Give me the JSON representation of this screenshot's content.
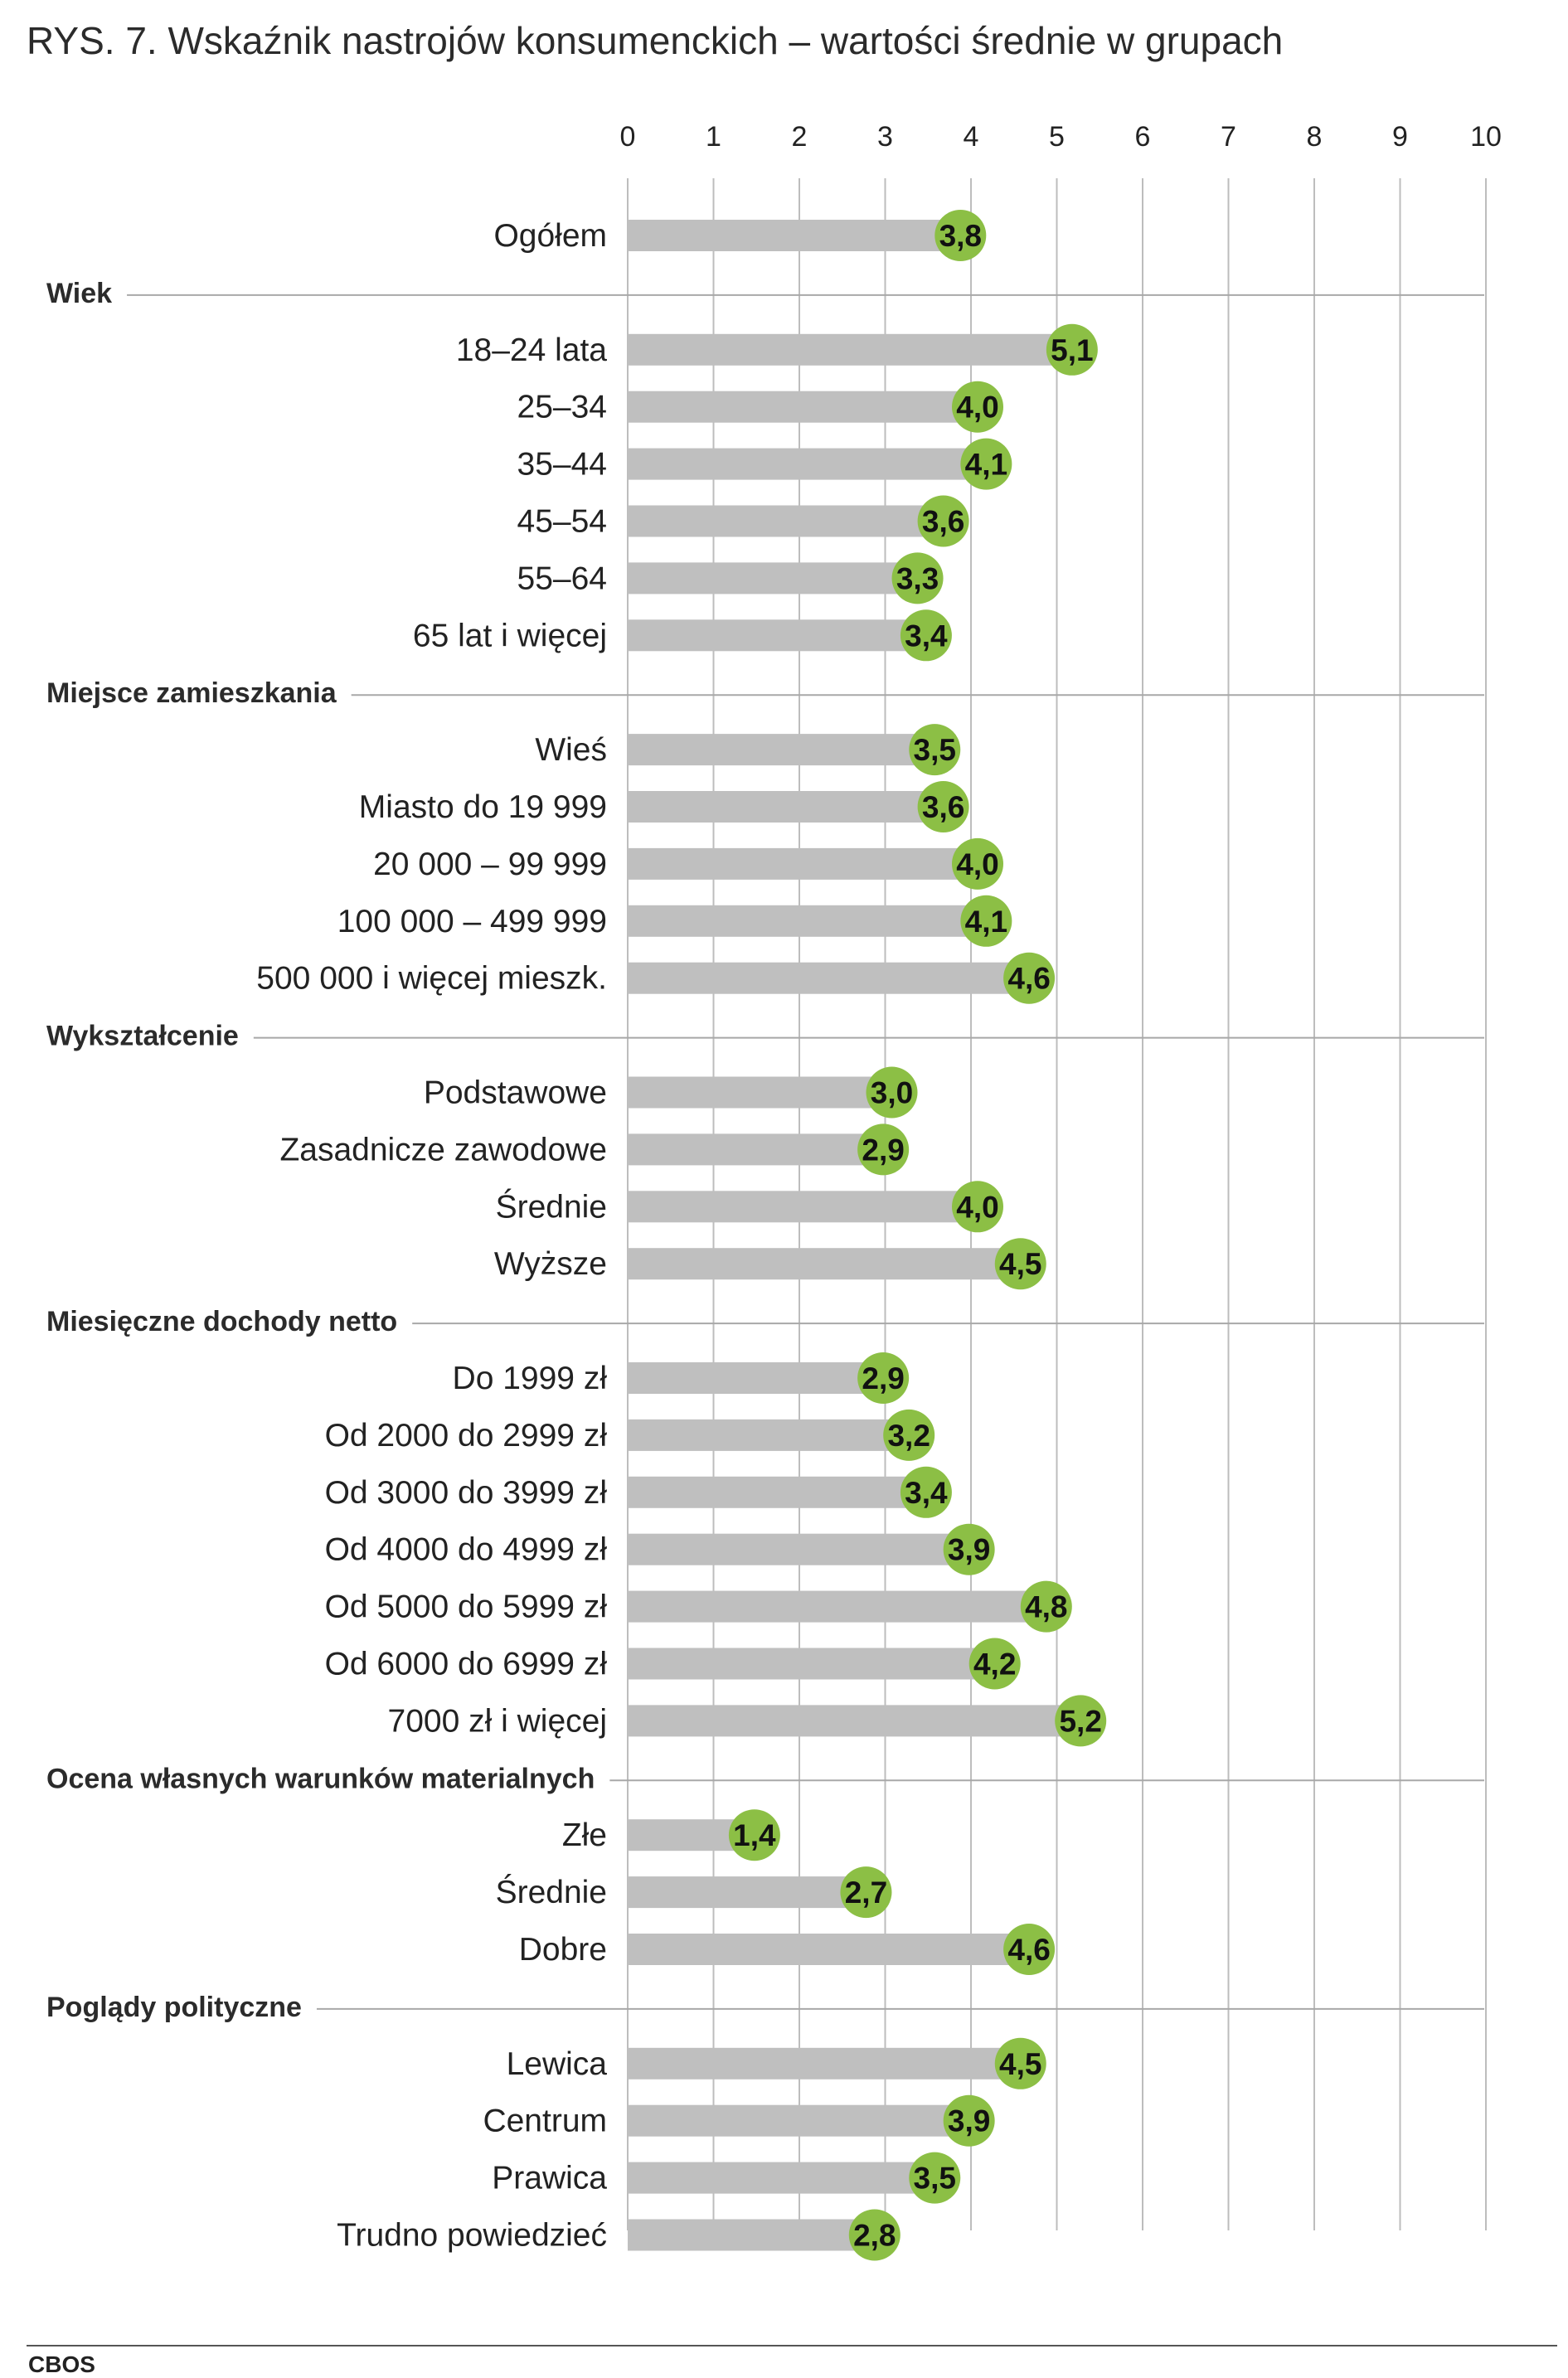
{
  "title": "RYS. 7. Wskaźnik nastrojów konsumenckich – wartości średnie w grupach",
  "source": "CBOS",
  "colors": {
    "bar": "#bfbfbf",
    "marker": "#8cbf45",
    "grid": "#bdbdbd",
    "text": "#222222"
  },
  "chart_data": {
    "type": "bar",
    "orientation": "horizontal",
    "title": "RYS. 7. Wskaźnik nastrojów konsumenckich – wartości średnie w grupach",
    "xlim": [
      0,
      10
    ],
    "xticks": [
      "0",
      "1",
      "2",
      "3",
      "4",
      "5",
      "6",
      "7",
      "8",
      "9",
      "10"
    ],
    "grid": true,
    "rows": [
      {
        "kind": "bar",
        "label": "Ogółem",
        "value": 3.8,
        "text": "3,8"
      },
      {
        "kind": "group",
        "label": "Wiek"
      },
      {
        "kind": "bar",
        "label": "18–24 lata",
        "value": 5.1,
        "text": "5,1"
      },
      {
        "kind": "bar",
        "label": "25–34",
        "value": 4.0,
        "text": "4,0"
      },
      {
        "kind": "bar",
        "label": "35–44",
        "value": 4.1,
        "text": "4,1"
      },
      {
        "kind": "bar",
        "label": "45–54",
        "value": 3.6,
        "text": "3,6"
      },
      {
        "kind": "bar",
        "label": "55–64",
        "value": 3.3,
        "text": "3,3"
      },
      {
        "kind": "bar",
        "label": "65 lat i więcej",
        "value": 3.4,
        "text": "3,4"
      },
      {
        "kind": "group",
        "label": "Miejsce zamieszkania"
      },
      {
        "kind": "bar",
        "label": "Wieś",
        "value": 3.5,
        "text": "3,5"
      },
      {
        "kind": "bar",
        "label": "Miasto do 19 999",
        "value": 3.6,
        "text": "3,6"
      },
      {
        "kind": "bar",
        "label": "20 000 – 99 999",
        "value": 4.0,
        "text": "4,0"
      },
      {
        "kind": "bar",
        "label": "100 000 – 499 999",
        "value": 4.1,
        "text": "4,1"
      },
      {
        "kind": "bar",
        "label": "500 000 i więcej mieszk.",
        "value": 4.6,
        "text": "4,6"
      },
      {
        "kind": "group",
        "label": "Wykształcenie"
      },
      {
        "kind": "bar",
        "label": "Podstawowe",
        "value": 3.0,
        "text": "3,0"
      },
      {
        "kind": "bar",
        "label": "Zasadnicze zawodowe",
        "value": 2.9,
        "text": "2,9"
      },
      {
        "kind": "bar",
        "label": "Średnie",
        "value": 4.0,
        "text": "4,0"
      },
      {
        "kind": "bar",
        "label": "Wyższe",
        "value": 4.5,
        "text": "4,5"
      },
      {
        "kind": "group",
        "label": "Miesięczne dochody netto"
      },
      {
        "kind": "bar",
        "label": "Do 1999 zł",
        "value": 2.9,
        "text": "2,9"
      },
      {
        "kind": "bar",
        "label": "Od 2000 do 2999 zł",
        "value": 3.2,
        "text": "3,2"
      },
      {
        "kind": "bar",
        "label": "Od 3000 do 3999 zł",
        "value": 3.4,
        "text": "3,4"
      },
      {
        "kind": "bar",
        "label": "Od 4000 do 4999 zł",
        "value": 3.9,
        "text": "3,9"
      },
      {
        "kind": "bar",
        "label": "Od 5000 do 5999 zł",
        "value": 4.8,
        "text": "4,8"
      },
      {
        "kind": "bar",
        "label": "Od 6000 do 6999 zł",
        "value": 4.2,
        "text": "4,2"
      },
      {
        "kind": "bar",
        "label": "7000 zł i więcej",
        "value": 5.2,
        "text": "5,2"
      },
      {
        "kind": "group",
        "label": "Ocena własnych warunków materialnych"
      },
      {
        "kind": "bar",
        "label": "Złe",
        "value": 1.4,
        "text": "1,4"
      },
      {
        "kind": "bar",
        "label": "Średnie",
        "value": 2.7,
        "text": "2,7"
      },
      {
        "kind": "bar",
        "label": "Dobre",
        "value": 4.6,
        "text": "4,6"
      },
      {
        "kind": "group",
        "label": "Poglądy polityczne"
      },
      {
        "kind": "bar",
        "label": "Lewica",
        "value": 4.5,
        "text": "4,5"
      },
      {
        "kind": "bar",
        "label": "Centrum",
        "value": 3.9,
        "text": "3,9"
      },
      {
        "kind": "bar",
        "label": "Prawica",
        "value": 3.5,
        "text": "3,5"
      },
      {
        "kind": "bar",
        "label": "Trudno powiedzieć",
        "value": 2.8,
        "text": "2,8"
      }
    ]
  }
}
